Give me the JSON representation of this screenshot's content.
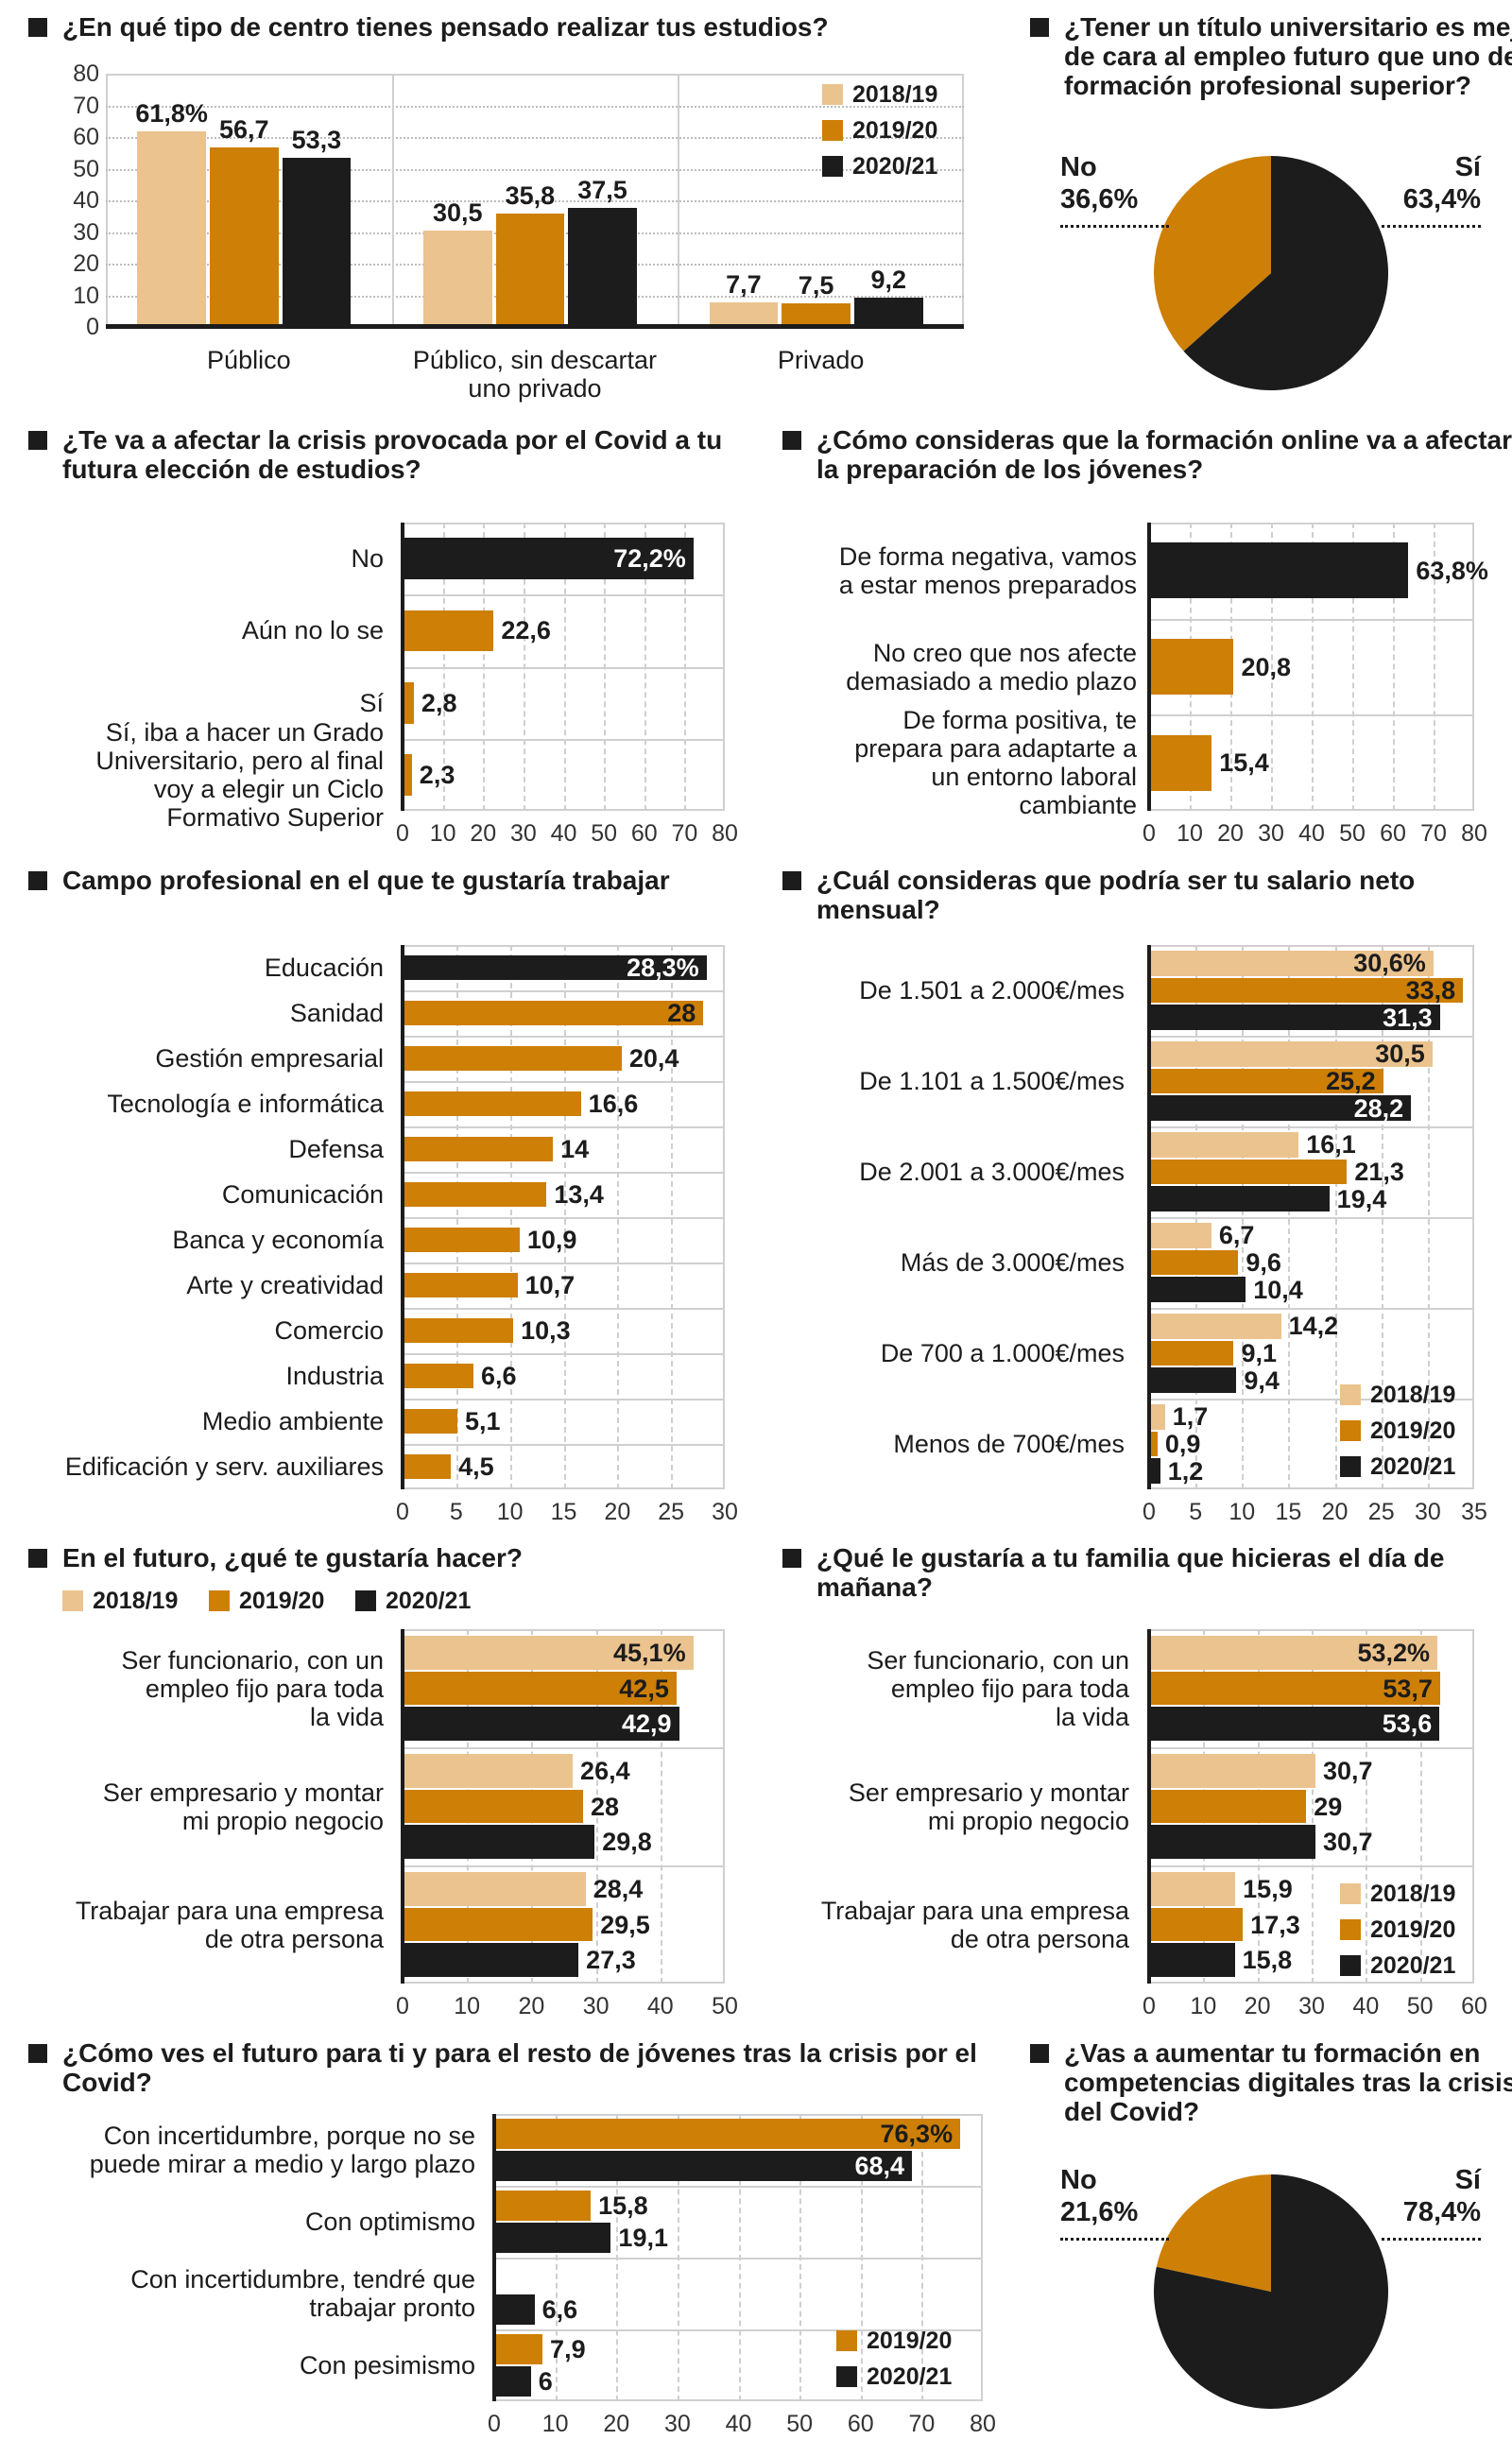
{
  "colors": {
    "2018/19": "#EBC38F",
    "2019/20": "#CD7F06",
    "2020/21": "#1C1C1C",
    "highlight": "#1C1C1C",
    "default": "#CD7F06"
  },
  "chart_data": [
    {
      "type": "bar",
      "title": "¿En qué tipo de centro tienes pensado realizar tus estudios?",
      "categories": [
        "Público",
        "Público, sin descartar\nuno privado",
        "Privado"
      ],
      "series": [
        {
          "name": "2018/19",
          "values": [
            61.8,
            30.5,
            7.7
          ],
          "labels": [
            "61,8%",
            "30,5",
            "7,7"
          ]
        },
        {
          "name": "2019/20",
          "values": [
            56.7,
            35.8,
            7.5
          ],
          "labels": [
            "56,7",
            "35,8",
            "7,5"
          ]
        },
        {
          "name": "2020/21",
          "values": [
            53.3,
            37.5,
            9.2
          ],
          "labels": [
            "53,3",
            "37,5",
            "9,2"
          ]
        }
      ],
      "ylim": [
        0,
        80
      ],
      "ticks": [
        "0",
        "10",
        "20",
        "30",
        "40",
        "50",
        "60",
        "70",
        "80"
      ],
      "grid": true,
      "legend": "top-right"
    },
    {
      "type": "pie",
      "title": "¿Tener un título universitario es mejor de cara al empleo futuro que uno de formación profesional superior?",
      "slices": [
        {
          "name": "No",
          "value": 36.6,
          "label": "36,6%",
          "color": "#CD7F06"
        },
        {
          "name": "Sí",
          "value": 63.4,
          "label": "63,4%",
          "color": "#1C1C1C"
        }
      ]
    },
    {
      "type": "bar",
      "orientation": "horizontal",
      "title": "¿Te va a afectar la crisis provocada por el Covid a tu futura elección de estudios?",
      "categories": [
        "No",
        "Aún no lo se",
        "Sí",
        "Sí, iba a hacer un Grado\nUniversitario, pero al final\nvoy a elegir un Ciclo\nFormativo Superior"
      ],
      "series": [
        {
          "values": [
            72.2,
            22.6,
            2.8,
            2.3
          ],
          "labels": [
            "72,2%",
            "22,6",
            "2,8",
            "2,3"
          ],
          "highlight_first": true
        }
      ],
      "xlim": [
        0,
        80
      ],
      "ticks": [
        "0",
        "10",
        "20",
        "30",
        "40",
        "50",
        "60",
        "70",
        "80"
      ]
    },
    {
      "type": "bar",
      "orientation": "horizontal",
      "title": "¿Cómo consideras que la formación online va a afectar a la preparación de los jóvenes?",
      "categories": [
        "De forma negativa, vamos\na estar menos preparados",
        "No creo que nos afecte\ndemasiado a medio plazo",
        "De forma positiva, te\nprepara para adaptarte a\nun entorno laboral\ncambiante"
      ],
      "series": [
        {
          "values": [
            63.8,
            20.8,
            15.4
          ],
          "labels": [
            "63,8%",
            "20,8",
            "15,4"
          ],
          "highlight_first": true
        }
      ],
      "xlim": [
        0,
        80
      ],
      "ticks": [
        "0",
        "10",
        "20",
        "30",
        "40",
        "50",
        "60",
        "70",
        "80"
      ]
    },
    {
      "type": "bar",
      "orientation": "horizontal",
      "title": "Campo profesional en el que te gustaría trabajar",
      "categories": [
        "Educación",
        "Sanidad",
        "Gestión empresarial",
        "Tecnología e informática",
        "Defensa",
        "Comunicación",
        "Banca y economía",
        "Arte y creatividad",
        "Comercio",
        "Industria",
        "Medio ambiente",
        "Edificación y serv. auxiliares"
      ],
      "series": [
        {
          "values": [
            28.3,
            28,
            20.4,
            16.6,
            14,
            13.4,
            10.9,
            10.7,
            10.3,
            6.6,
            5.1,
            4.5
          ],
          "labels": [
            "28,3%",
            "28",
            "20,4",
            "16,6",
            "14",
            "13,4",
            "10,9",
            "10,7",
            "10,3",
            "6,6",
            "5,1",
            "4,5"
          ],
          "highlight_first": true
        }
      ],
      "xlim": [
        0,
        30
      ],
      "ticks": [
        "0",
        "5",
        "10",
        "15",
        "20",
        "25",
        "30"
      ]
    },
    {
      "type": "bar",
      "orientation": "horizontal",
      "title": "¿Cuál consideras que podría ser tu salario neto mensual?",
      "categories": [
        "De 1.501 a 2.000€/mes",
        "De 1.101 a 1.500€/mes",
        "De 2.001 a 3.000€/mes",
        "Más de 3.000€/mes",
        "De 700 a 1.000€/mes",
        "Menos de 700€/mes"
      ],
      "series": [
        {
          "name": "2018/19",
          "values": [
            30.6,
            30.5,
            16.1,
            6.7,
            14.2,
            1.7
          ],
          "labels": [
            "30,6%",
            "30,5",
            "16,1",
            "6,7",
            "14,2",
            "1,7"
          ]
        },
        {
          "name": "2019/20",
          "values": [
            33.8,
            25.2,
            21.3,
            9.6,
            9.1,
            0.9
          ],
          "labels": [
            "33,8",
            "25,2",
            "21,3",
            "9,6",
            "9,1",
            "0,9"
          ]
        },
        {
          "name": "2020/21",
          "values": [
            31.3,
            28.2,
            19.4,
            10.4,
            9.4,
            1.2
          ],
          "labels": [
            "31,3",
            "28,2",
            "19,4",
            "10,4",
            "9,4",
            "1,2"
          ]
        }
      ],
      "xlim": [
        0,
        35
      ],
      "ticks": [
        "0",
        "5",
        "10",
        "15",
        "20",
        "25",
        "30",
        "35"
      ],
      "legend": "bottom-right"
    },
    {
      "type": "bar",
      "orientation": "horizontal",
      "title": "En el futuro, ¿qué te gustaría hacer?",
      "categories": [
        "Ser funcionario, con un\nempleo fijo para toda\nla vida",
        "Ser empresario y montar\nmi propio negocio",
        "Trabajar para una empresa\nde otra persona"
      ],
      "series": [
        {
          "name": "2018/19",
          "values": [
            45.1,
            26.4,
            28.4
          ],
          "labels": [
            "45,1%",
            "26,4",
            "28,4"
          ]
        },
        {
          "name": "2019/20",
          "values": [
            42.5,
            28,
            29.5
          ],
          "labels": [
            "42,5",
            "28",
            "29,5"
          ]
        },
        {
          "name": "2020/21",
          "values": [
            42.9,
            29.8,
            27.3
          ],
          "labels": [
            "42,9",
            "29,8",
            "27,3"
          ]
        }
      ],
      "xlim": [
        0,
        50
      ],
      "ticks": [
        "0",
        "10",
        "20",
        "30",
        "40",
        "50"
      ],
      "legend": "top-left"
    },
    {
      "type": "bar",
      "orientation": "horizontal",
      "title": "¿Qué le gustaría a tu familia que hicieras el día de mañana?",
      "categories": [
        "Ser funcionario, con un\nempleo fijo para toda\nla vida",
        "Ser empresario y montar\nmi propio negocio",
        "Trabajar para una empresa\nde otra persona"
      ],
      "series": [
        {
          "name": "2018/19",
          "values": [
            53.2,
            30.7,
            15.9
          ],
          "labels": [
            "53,2%",
            "30,7",
            "15,9"
          ]
        },
        {
          "name": "2019/20",
          "values": [
            53.7,
            29,
            17.3
          ],
          "labels": [
            "53,7",
            "29",
            "17,3"
          ]
        },
        {
          "name": "2020/21",
          "values": [
            53.6,
            30.7,
            15.8
          ],
          "labels": [
            "53,6",
            "30,7",
            "15,8"
          ]
        }
      ],
      "xlim": [
        0,
        60
      ],
      "ticks": [
        "0",
        "10",
        "20",
        "30",
        "40",
        "50",
        "60"
      ],
      "legend": "bottom-right"
    },
    {
      "type": "bar",
      "orientation": "horizontal",
      "title": "¿Cómo ves el futuro para ti y para el resto de jóvenes tras la crisis por el Covid?",
      "categories": [
        "Con incertidumbre, porque no se\npuede mirar a medio y largo plazo",
        "Con optimismo",
        "Con incertidumbre, tendré que\ntrabajar pronto",
        "Con pesimismo"
      ],
      "series": [
        {
          "name": "2019/20",
          "values": [
            76.3,
            15.8,
            0,
            7.9
          ],
          "labels": [
            "76,3%",
            "15,8",
            "",
            "7,9"
          ]
        },
        {
          "name": "2020/21",
          "values": [
            68.4,
            19.1,
            6.6,
            6
          ],
          "labels": [
            "68,4",
            "19,1",
            "6,6",
            "6"
          ]
        }
      ],
      "xlim": [
        0,
        80
      ],
      "ticks": [
        "0",
        "10",
        "20",
        "30",
        "40",
        "50",
        "60",
        "70",
        "80"
      ],
      "legend": "bottom-right"
    },
    {
      "type": "pie",
      "title": "¿Vas a aumentar tu formación en competencias digitales tras la crisis del Covid?",
      "slices": [
        {
          "name": "No",
          "value": 21.6,
          "label": "21,6%",
          "color": "#CD7F06"
        },
        {
          "name": "Sí",
          "value": 78.4,
          "label": "78,4%",
          "color": "#1C1C1C"
        }
      ]
    }
  ]
}
